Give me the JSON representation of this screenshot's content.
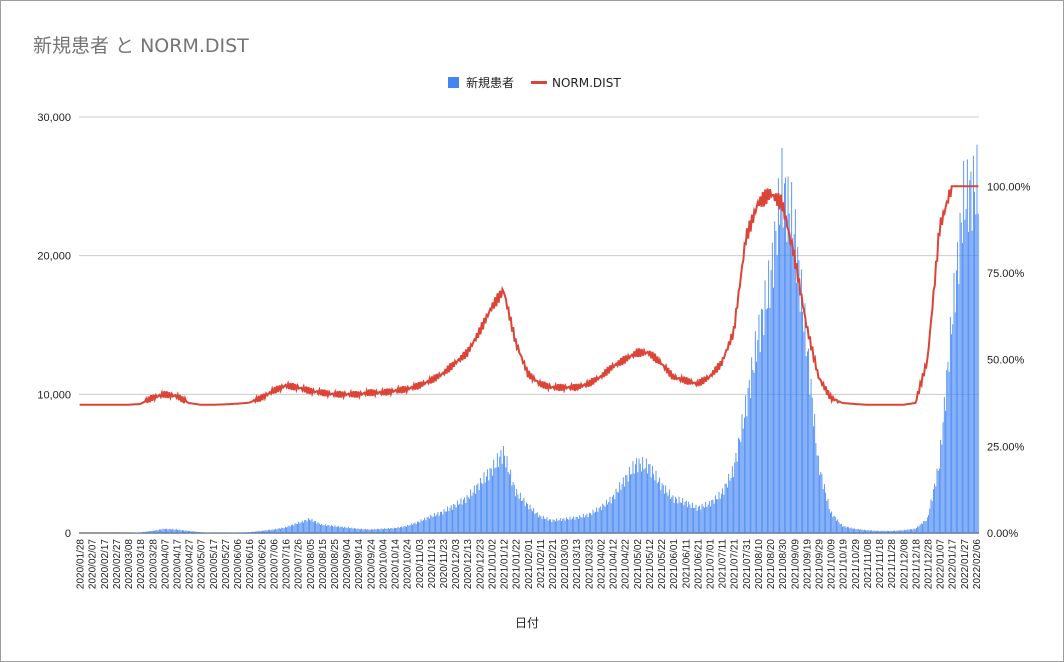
{
  "chart_data": {
    "type": "bar+line",
    "title": "新規患者 と NORM.DIST",
    "xlabel": "日付",
    "ylabel_left": "",
    "ylabel_right": "",
    "left_axis": {
      "min": 0,
      "max": 30000,
      "ticks": [
        "0",
        "10,000",
        "20,000",
        "30,000"
      ]
    },
    "right_axis": {
      "min": 0,
      "max": 1.2,
      "ticks": [
        "0.00%",
        "25.00%",
        "50.00%",
        "75.00%",
        "100.00%"
      ]
    },
    "grid": true,
    "legend_position": "top",
    "x_tick_labels": [
      "2020/01/28",
      "2020/02/07",
      "2020/02/17",
      "2020/02/27",
      "2020/03/08",
      "2020/03/18",
      "2020/03/28",
      "2020/04/07",
      "2020/04/17",
      "2020/04/27",
      "2020/05/07",
      "2020/05/17",
      "2020/05/27",
      "2020/06/06",
      "2020/06/16",
      "2020/06/26",
      "2020/07/06",
      "2020/07/16",
      "2020/07/26",
      "2020/08/05",
      "2020/08/15",
      "2020/08/25",
      "2020/09/04",
      "2020/09/14",
      "2020/09/24",
      "2020/10/04",
      "2020/10/14",
      "2020/10/24",
      "2020/11/03",
      "2020/11/13",
      "2020/11/23",
      "2020/12/03",
      "2020/12/13",
      "2020/12/23",
      "2021/01/02",
      "2021/01/12",
      "2021/01/22",
      "2021/02/01",
      "2021/02/11",
      "2021/02/21",
      "2021/03/03",
      "2021/03/13",
      "2021/03/23",
      "2021/04/02",
      "2021/04/12",
      "2021/04/22",
      "2021/05/02",
      "2021/05/12",
      "2021/05/22",
      "2021/06/01",
      "2021/06/11",
      "2021/06/21",
      "2021/07/01",
      "2021/07/11",
      "2021/07/21",
      "2021/07/31",
      "2021/08/10",
      "2021/08/20",
      "2021/08/30",
      "2021/09/09",
      "2021/09/19",
      "2021/09/29",
      "2021/10/09",
      "2021/10/19",
      "2021/10/29",
      "2021/11/08",
      "2021/11/18",
      "2021/11/28",
      "2021/12/08",
      "2021/12/18",
      "2021/12/28",
      "2022/01/07",
      "2022/01/17",
      "2022/01/27",
      "2022/02/06"
    ],
    "series": [
      {
        "name": "新規患者",
        "type": "bar",
        "axis": "left",
        "color": "#4285f4",
        "values_every_10_days": [
          0,
          0,
          0,
          0,
          10,
          40,
          150,
          300,
          250,
          150,
          60,
          20,
          20,
          40,
          60,
          150,
          250,
          400,
          700,
          1000,
          600,
          500,
          400,
          300,
          250,
          300,
          350,
          500,
          800,
          1200,
          1500,
          2000,
          2500,
          3500,
          4500,
          5800,
          3000,
          2000,
          1200,
          900,
          1000,
          1100,
          1300,
          1800,
          2500,
          3800,
          5000,
          4800,
          3500,
          2500,
          2200,
          1800,
          2100,
          2800,
          4500,
          9000,
          14000,
          18000,
          25000,
          22000,
          14000,
          5000,
          1500,
          500,
          300,
          200,
          150,
          150,
          200,
          300,
          1000,
          5000,
          15000,
          24000,
          25000
        ]
      },
      {
        "name": "NORM.DIST",
        "type": "line",
        "axis": "right",
        "color": "#db4437",
        "values_every_10_days": [
          0.37,
          0.37,
          0.37,
          0.37,
          0.37,
          0.372,
          0.39,
          0.4,
          0.395,
          0.375,
          0.37,
          0.37,
          0.371,
          0.373,
          0.376,
          0.39,
          0.41,
          0.425,
          0.42,
          0.41,
          0.405,
          0.4,
          0.4,
          0.4,
          0.405,
          0.405,
          0.41,
          0.415,
          0.425,
          0.44,
          0.46,
          0.49,
          0.52,
          0.58,
          0.65,
          0.7,
          0.55,
          0.46,
          0.43,
          0.42,
          0.42,
          0.42,
          0.43,
          0.45,
          0.48,
          0.5,
          0.52,
          0.52,
          0.49,
          0.45,
          0.44,
          0.43,
          0.45,
          0.49,
          0.58,
          0.85,
          0.95,
          0.98,
          0.95,
          0.8,
          0.6,
          0.45,
          0.39,
          0.375,
          0.372,
          0.37,
          0.37,
          0.37,
          0.37,
          0.375,
          0.5,
          0.88,
          1.0,
          1.0,
          1.0
        ]
      }
    ]
  }
}
